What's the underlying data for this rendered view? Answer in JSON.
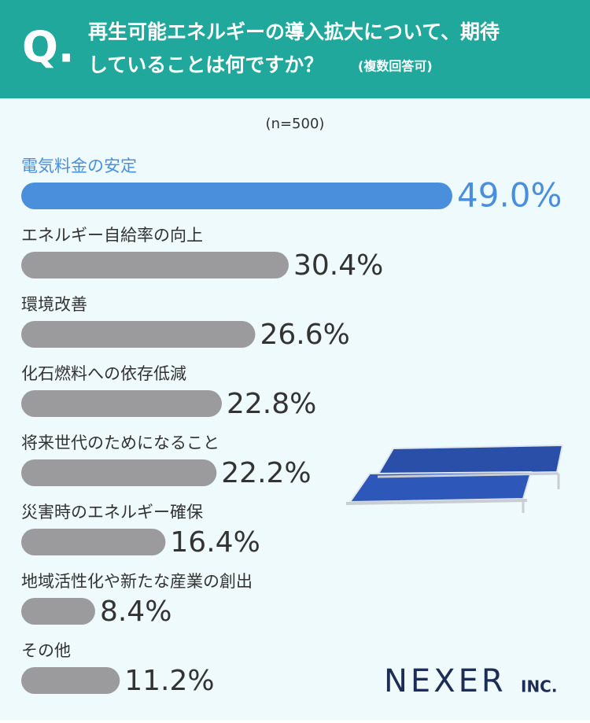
{
  "chart_data": {
    "type": "bar",
    "orientation": "horizontal",
    "marker": "Q.",
    "title_lines": [
      "再生可能エネルギーの導入拡大について、期待",
      "していることは何ですか？"
    ],
    "subtitle": "(複数回答可)",
    "sample_note": "(n=500)",
    "categories": [
      "電気料金の安定",
      "エネルギー自給率の向上",
      "環境改善",
      "化石燃料への依存低減",
      "将来世代のためになること",
      "災害時のエネルギー確保",
      "地域活性化や新たな産業の創出",
      "その他"
    ],
    "values": [
      49.0,
      30.4,
      26.6,
      22.8,
      22.2,
      16.4,
      8.4,
      11.2
    ],
    "value_labels": [
      "49.0%",
      "30.4%",
      "26.6%",
      "22.8%",
      "22.2%",
      "16.4%",
      "8.4%",
      "11.2%"
    ],
    "colors": [
      "#4a8fdc",
      "#9b9b9e",
      "#9b9b9e",
      "#9b9b9e",
      "#9b9b9e",
      "#9b9b9e",
      "#9b9b9e",
      "#9b9b9e"
    ],
    "logo": "NEXER",
    "logo_suffix": "INC."
  }
}
